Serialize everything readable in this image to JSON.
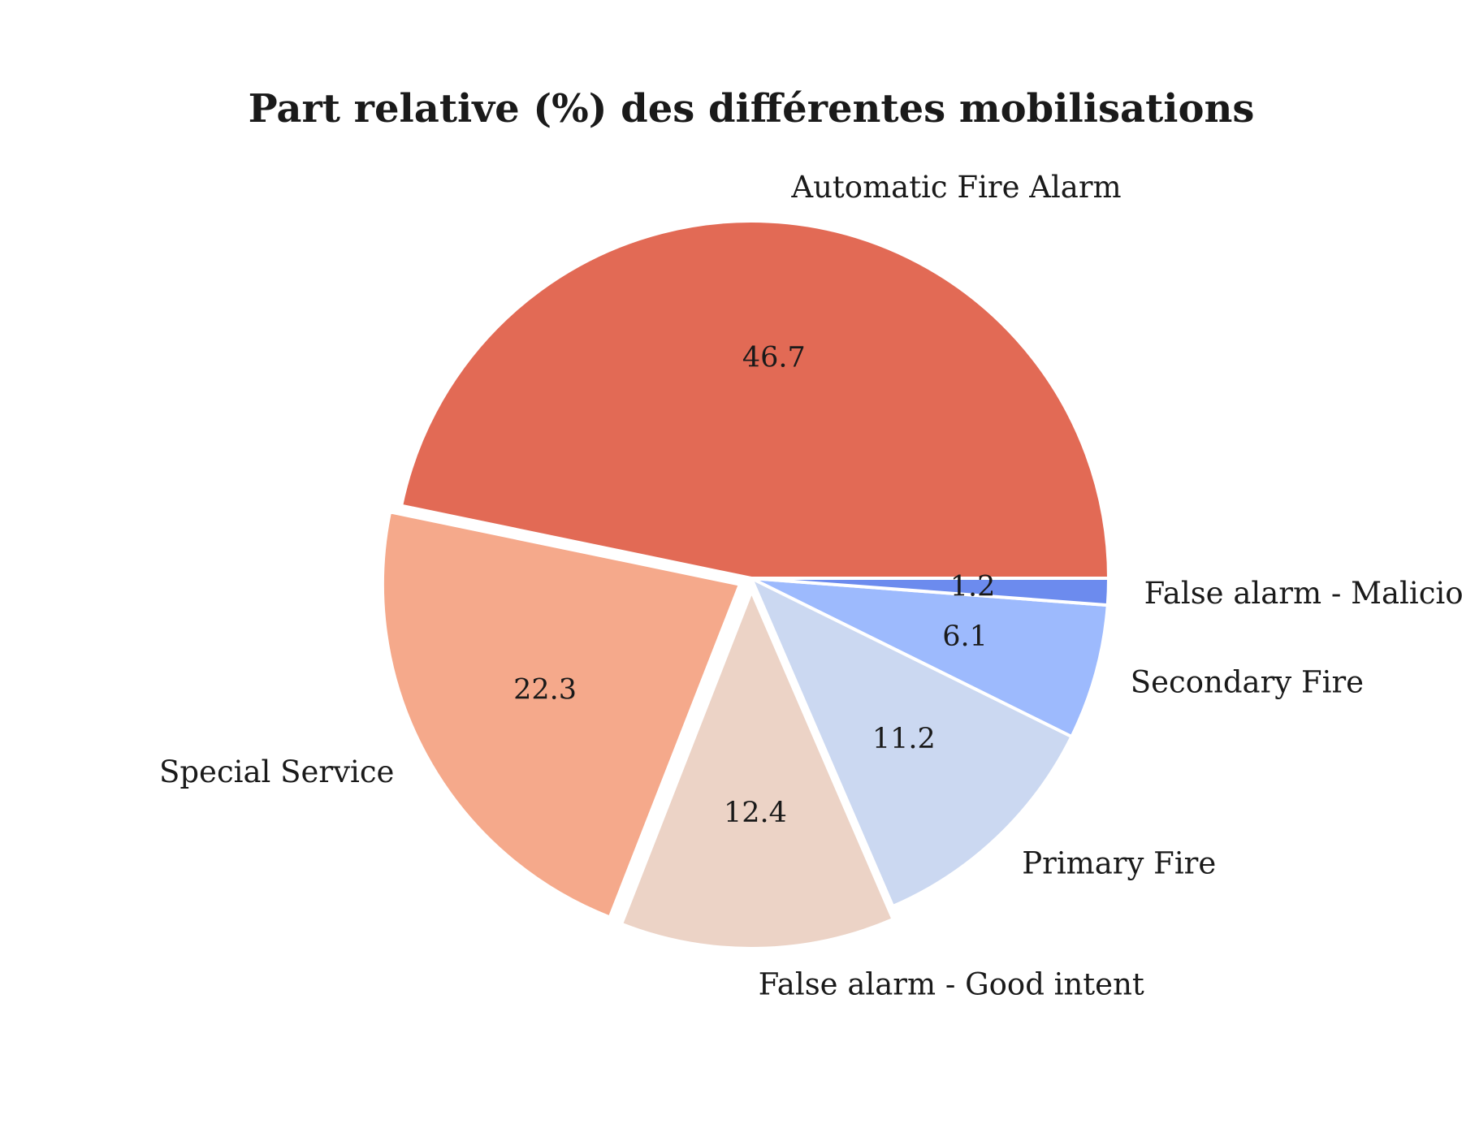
{
  "chart_data": {
    "type": "pie",
    "title": "Part relative (%) des différentes mobilisations",
    "slices": [
      {
        "label": "Automatic Fire Alarm",
        "value": 46.7,
        "display": "46.7",
        "color": "#e26a55",
        "exploded": false
      },
      {
        "label": "Special Service",
        "value": 22.3,
        "display": "22.3",
        "color": "#f5a98b",
        "exploded": true
      },
      {
        "label": "False alarm - Good intent",
        "value": 12.4,
        "display": "12.4",
        "color": "#ecd3c6",
        "exploded": true
      },
      {
        "label": "Primary Fire",
        "value": 11.2,
        "display": "11.2",
        "color": "#cbd8f1",
        "exploded": false
      },
      {
        "label": "Secondary Fire",
        "value": 6.1,
        "display": "6.1",
        "color": "#9dbafd",
        "exploded": false
      },
      {
        "label": "False alarm - Malicious",
        "value": 1.2,
        "display": "1.2",
        "color": "#6c8bee",
        "exploded": false
      }
    ],
    "start_angle_deg": 0,
    "direction": "counterclockwise",
    "legend": "none"
  }
}
